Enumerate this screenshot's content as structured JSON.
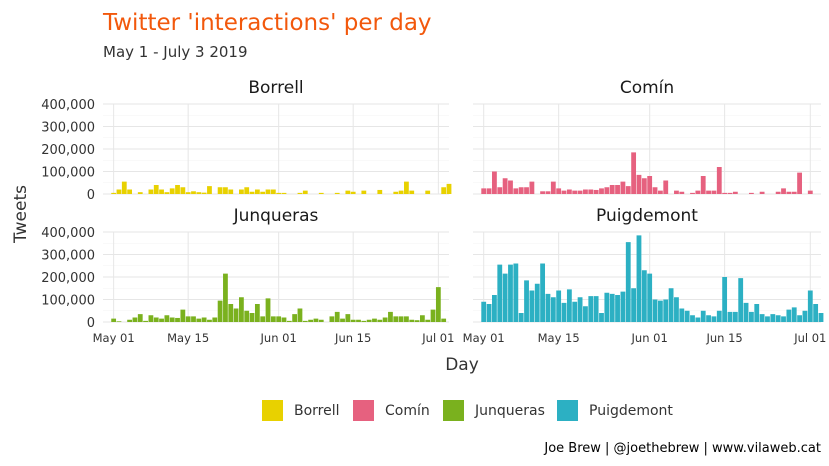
{
  "title": "Twitter 'interactions' per day",
  "subtitle": "May 1 - July 3 2019",
  "caption": "Joe Brew | @joethebrew | www.vilaweb.cat",
  "chart_data": {
    "type": "bar",
    "xlabel": "Day",
    "ylabel": "Tweets",
    "ylim": [
      0,
      400000
    ],
    "y_ticks": [
      "0",
      "100,000",
      "200,000",
      "300,000",
      "400,000"
    ],
    "y_tick_values": [
      0,
      100000,
      200000,
      300000,
      400000
    ],
    "x_ticks": [
      "May 01",
      "May 15",
      "Jun 01",
      "Jun 15",
      "Jul 01"
    ],
    "x_tick_days": [
      1,
      15,
      32,
      46,
      62
    ],
    "x_domain_days": [
      -1,
      64
    ],
    "grid": true,
    "legend_position": "bottom",
    "colors": {
      "Borrell": "#e8d100",
      "Comín": "#e6617f",
      "Junqueras": "#7ab11e",
      "Puigdemont": "#2cb0c3"
    },
    "x_description": "day of 2019 counted from May 01 = 1 (Jun 01 = 32, Jul 01 = 62)",
    "series": [
      {
        "name": "Borrell",
        "x_start": 1,
        "values": [
          5000,
          20000,
          55000,
          20000,
          0,
          8000,
          0,
          20000,
          40000,
          20000,
          8000,
          25000,
          40000,
          30000,
          8000,
          12000,
          8000,
          6000,
          35000,
          0,
          30000,
          30000,
          20000,
          0,
          20000,
          30000,
          10000,
          20000,
          10000,
          20000,
          20000,
          5000,
          5000,
          0,
          0,
          5000,
          15000,
          0,
          0,
          5000,
          0,
          0,
          5000,
          0,
          15000,
          10000,
          0,
          15000,
          0,
          0,
          18000,
          0,
          0,
          10000,
          15000,
          55000,
          15000,
          0,
          0,
          15000,
          0,
          0,
          30000,
          45000
        ]
      },
      {
        "name": "Comín",
        "x_start": 1,
        "values": [
          25000,
          25000,
          100000,
          30000,
          70000,
          60000,
          25000,
          30000,
          30000,
          55000,
          0,
          12000,
          12000,
          55000,
          25000,
          15000,
          20000,
          15000,
          15000,
          20000,
          20000,
          18000,
          25000,
          30000,
          40000,
          40000,
          55000,
          35000,
          185000,
          85000,
          70000,
          80000,
          30000,
          15000,
          60000,
          0,
          15000,
          10000,
          0,
          5000,
          15000,
          80000,
          15000,
          15000,
          120000,
          5000,
          5000,
          10000,
          0,
          0,
          5000,
          0,
          10000,
          0,
          0,
          10000,
          25000,
          10000,
          10000,
          95000,
          0,
          15000,
          0,
          0
        ]
      },
      {
        "name": "Junqueras",
        "x_start": 1,
        "values": [
          15000,
          3000,
          0,
          10000,
          20000,
          35000,
          5000,
          30000,
          20000,
          15000,
          30000,
          20000,
          18000,
          55000,
          25000,
          25000,
          15000,
          20000,
          10000,
          20000,
          95000,
          215000,
          80000,
          60000,
          110000,
          50000,
          40000,
          80000,
          25000,
          105000,
          25000,
          25000,
          20000,
          5000,
          35000,
          60000,
          5000,
          10000,
          15000,
          10000,
          0,
          25000,
          45000,
          15000,
          35000,
          10000,
          10000,
          5000,
          10000,
          15000,
          10000,
          20000,
          45000,
          25000,
          25000,
          25000,
          10000,
          8000,
          30000,
          10000,
          55000,
          155000,
          15000,
          0
        ]
      },
      {
        "name": "Puigdemont",
        "x_start": 1,
        "values": [
          90000,
          80000,
          120000,
          255000,
          215000,
          255000,
          260000,
          40000,
          185000,
          140000,
          170000,
          260000,
          125000,
          110000,
          140000,
          85000,
          145000,
          90000,
          110000,
          70000,
          115000,
          115000,
          40000,
          130000,
          125000,
          120000,
          135000,
          355000,
          150000,
          385000,
          230000,
          215000,
          100000,
          95000,
          100000,
          150000,
          110000,
          60000,
          50000,
          30000,
          20000,
          50000,
          30000,
          25000,
          50000,
          200000,
          45000,
          45000,
          195000,
          85000,
          45000,
          80000,
          35000,
          25000,
          35000,
          30000,
          25000,
          55000,
          65000,
          30000,
          50000,
          140000,
          80000,
          40000
        ]
      }
    ]
  }
}
